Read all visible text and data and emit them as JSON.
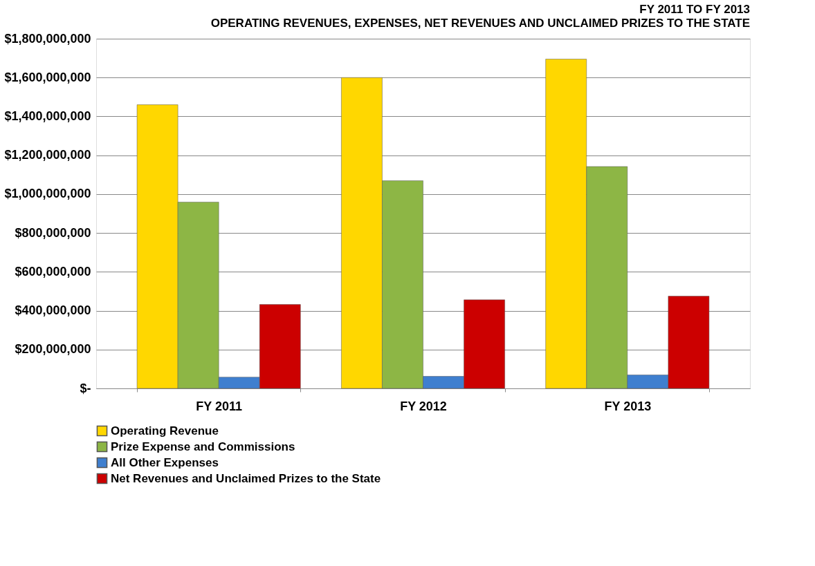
{
  "chart_data": {
    "type": "bar",
    "title": "FY 2011 TO FY 2013",
    "subtitle": "OPERATING REVENUES, EXPENSES, NET REVENUES AND UNCLAIMED PRIZES TO THE STATE",
    "categories": [
      "FY 2011",
      "FY 2012",
      "FY 2013"
    ],
    "series": [
      {
        "name": "Operating Revenue",
        "color": "#ffd700",
        "values": [
          1460000000,
          1600000000,
          1695000000
        ]
      },
      {
        "name": "Prize Expense and Commissions",
        "color": "#8db645",
        "values": [
          959000000,
          1069000000,
          1142000000
        ]
      },
      {
        "name": "All Other Expenses",
        "color": "#3f7fcf",
        "values": [
          58000000,
          62000000,
          69000000
        ]
      },
      {
        "name": "Net Revenues and Unclaimed Prizes to the State",
        "color": "#cc0000",
        "values": [
          432000000,
          456000000,
          475000000
        ]
      }
    ],
    "ylim": [
      0,
      1800000000
    ],
    "yticks": [
      {
        "value": 0,
        "label": "$-"
      },
      {
        "value": 200000000,
        "label": "$200,000,000"
      },
      {
        "value": 400000000,
        "label": "$400,000,000"
      },
      {
        "value": 600000000,
        "label": "$600,000,000"
      },
      {
        "value": 800000000,
        "label": "$800,000,000"
      },
      {
        "value": 1000000000,
        "label": "$1,000,000,000"
      },
      {
        "value": 1200000000,
        "label": "$1,200,000,000"
      },
      {
        "value": 1400000000,
        "label": "$1,400,000,000"
      },
      {
        "value": 1600000000,
        "label": "$1,600,000,000"
      },
      {
        "value": 1800000000,
        "label": "$1,800,000,000"
      }
    ],
    "grid": "y",
    "legend": "bottom"
  }
}
